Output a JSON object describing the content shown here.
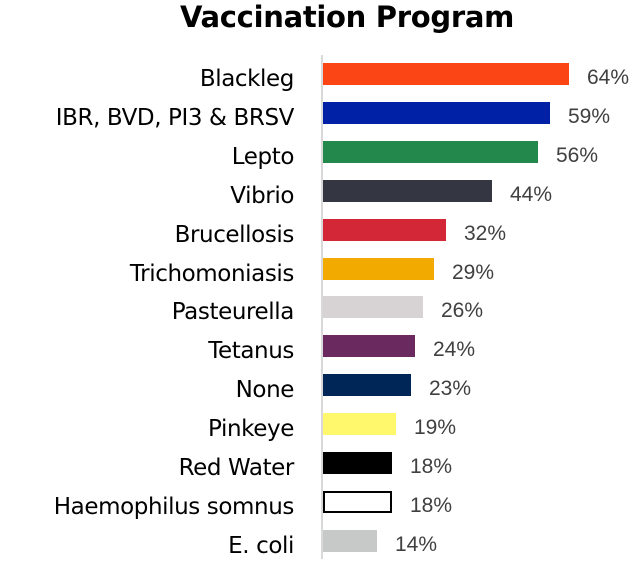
{
  "title": "Vaccination Program",
  "chart_data": {
    "type": "bar",
    "orientation": "horizontal",
    "title": "Vaccination Program",
    "xlabel": "",
    "ylabel": "",
    "categories": [
      "Blackleg",
      "IBR, BVD, PI3 & BRSV",
      "Lepto",
      "Vibrio",
      "Brucellosis",
      "Trichomoniasis",
      "Pasteurella",
      "Tetanus",
      "None",
      "Pinkeye",
      "Red Water",
      "Haemophilus somnus",
      "E. coli"
    ],
    "values": [
      64,
      59,
      56,
      44,
      32,
      29,
      26,
      24,
      23,
      19,
      18,
      18,
      14
    ],
    "value_labels": [
      "64%",
      "59%",
      "56%",
      "44%",
      "32%",
      "29%",
      "26%",
      "24%",
      "23%",
      "19%",
      "18%",
      "18%",
      "14%"
    ],
    "colors": [
      "#FC4514",
      "#0021A5",
      "#22884C",
      "#343741",
      "#D32737",
      "#F2A900",
      "#D7D2D4",
      "#6A2A60",
      "#002657",
      "#FFF86C",
      "#000000",
      "#FFFFFF",
      "#C7C9C8"
    ],
    "unit": "%",
    "grid": false,
    "legend": "none",
    "xlim": [
      0,
      70
    ]
  },
  "rows": [
    {
      "label": "Blackleg",
      "value": 64,
      "text": "64%",
      "color": "#FC4514",
      "border": "none"
    },
    {
      "label": "IBR, BVD, PI3 & BRSV",
      "value": 59,
      "text": "59%",
      "color": "#0021A5",
      "border": "none"
    },
    {
      "label": "Lepto",
      "value": 56,
      "text": "56%",
      "color": "#22884C",
      "border": "none"
    },
    {
      "label": "Vibrio",
      "value": 44,
      "text": "44%",
      "color": "#343741",
      "border": "none"
    },
    {
      "label": "Brucellosis",
      "value": 32,
      "text": "32%",
      "color": "#D32737",
      "border": "none"
    },
    {
      "label": "Trichomoniasis",
      "value": 29,
      "text": "29%",
      "color": "#F2A900",
      "border": "none"
    },
    {
      "label": "Pasteurella",
      "value": 26,
      "text": "26%",
      "color": "#D7D2D4",
      "border": "none"
    },
    {
      "label": "Tetanus",
      "value": 24,
      "text": "24%",
      "color": "#6A2A60",
      "border": "none"
    },
    {
      "label": "None",
      "value": 23,
      "text": "23%",
      "color": "#002657",
      "border": "none"
    },
    {
      "label": "Pinkeye",
      "value": 19,
      "text": "19%",
      "color": "#FFF86C",
      "border": "none"
    },
    {
      "label": "Red Water",
      "value": 18,
      "text": "18%",
      "color": "#000000",
      "border": "none"
    },
    {
      "label": "Haemophilus somnus",
      "value": 18,
      "text": "18%",
      "color": "#FFFFFF",
      "border": "2px solid #000000"
    },
    {
      "label": "E. coli",
      "value": 14,
      "text": "14%",
      "color": "#C7C9C8",
      "border": "none"
    }
  ]
}
